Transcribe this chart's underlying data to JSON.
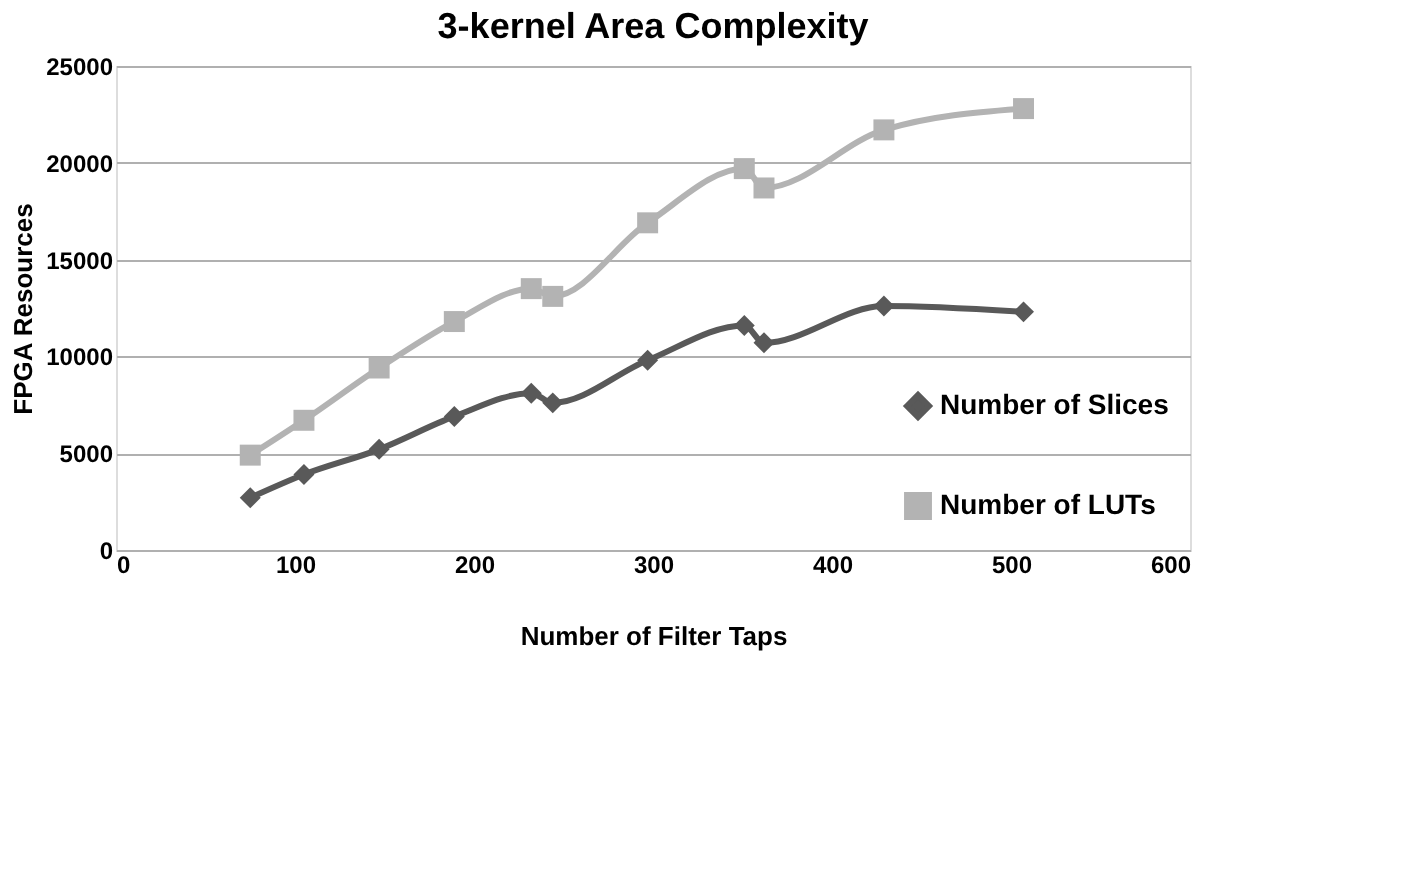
{
  "chart_data": {
    "type": "line",
    "title": "3-kernel Area Complexity",
    "xlabel": "Number of Filter Taps",
    "ylabel": "FPGA Resources",
    "xlim": [
      0,
      600
    ],
    "xticks": [
      0,
      100,
      200,
      300,
      400,
      500,
      600
    ],
    "ylim": [
      0,
      25000
    ],
    "yticks": [
      0,
      5000,
      10000,
      15000,
      20000,
      25000
    ],
    "grid": "y",
    "legend": "bottom right",
    "line_style": "solid",
    "series": [
      {
        "name": "Number of Slices",
        "color": "#595959",
        "marker": "diamond",
        "x": [
          75,
          105,
          147,
          189,
          232,
          244,
          297,
          351,
          362,
          429,
          507
        ],
        "values": [
          2700,
          3900,
          5200,
          6900,
          8100,
          7600,
          9800,
          11600,
          10700,
          12600,
          12300
        ]
      },
      {
        "name": "Number of LUTs",
        "color": "#b3b3b3",
        "marker": "square",
        "x": [
          75,
          105,
          147,
          189,
          232,
          244,
          297,
          351,
          362,
          429,
          507
        ],
        "values": [
          4900,
          6700,
          9400,
          11800,
          13500,
          13100,
          16900,
          19700,
          18700,
          21700,
          22800
        ]
      }
    ]
  }
}
